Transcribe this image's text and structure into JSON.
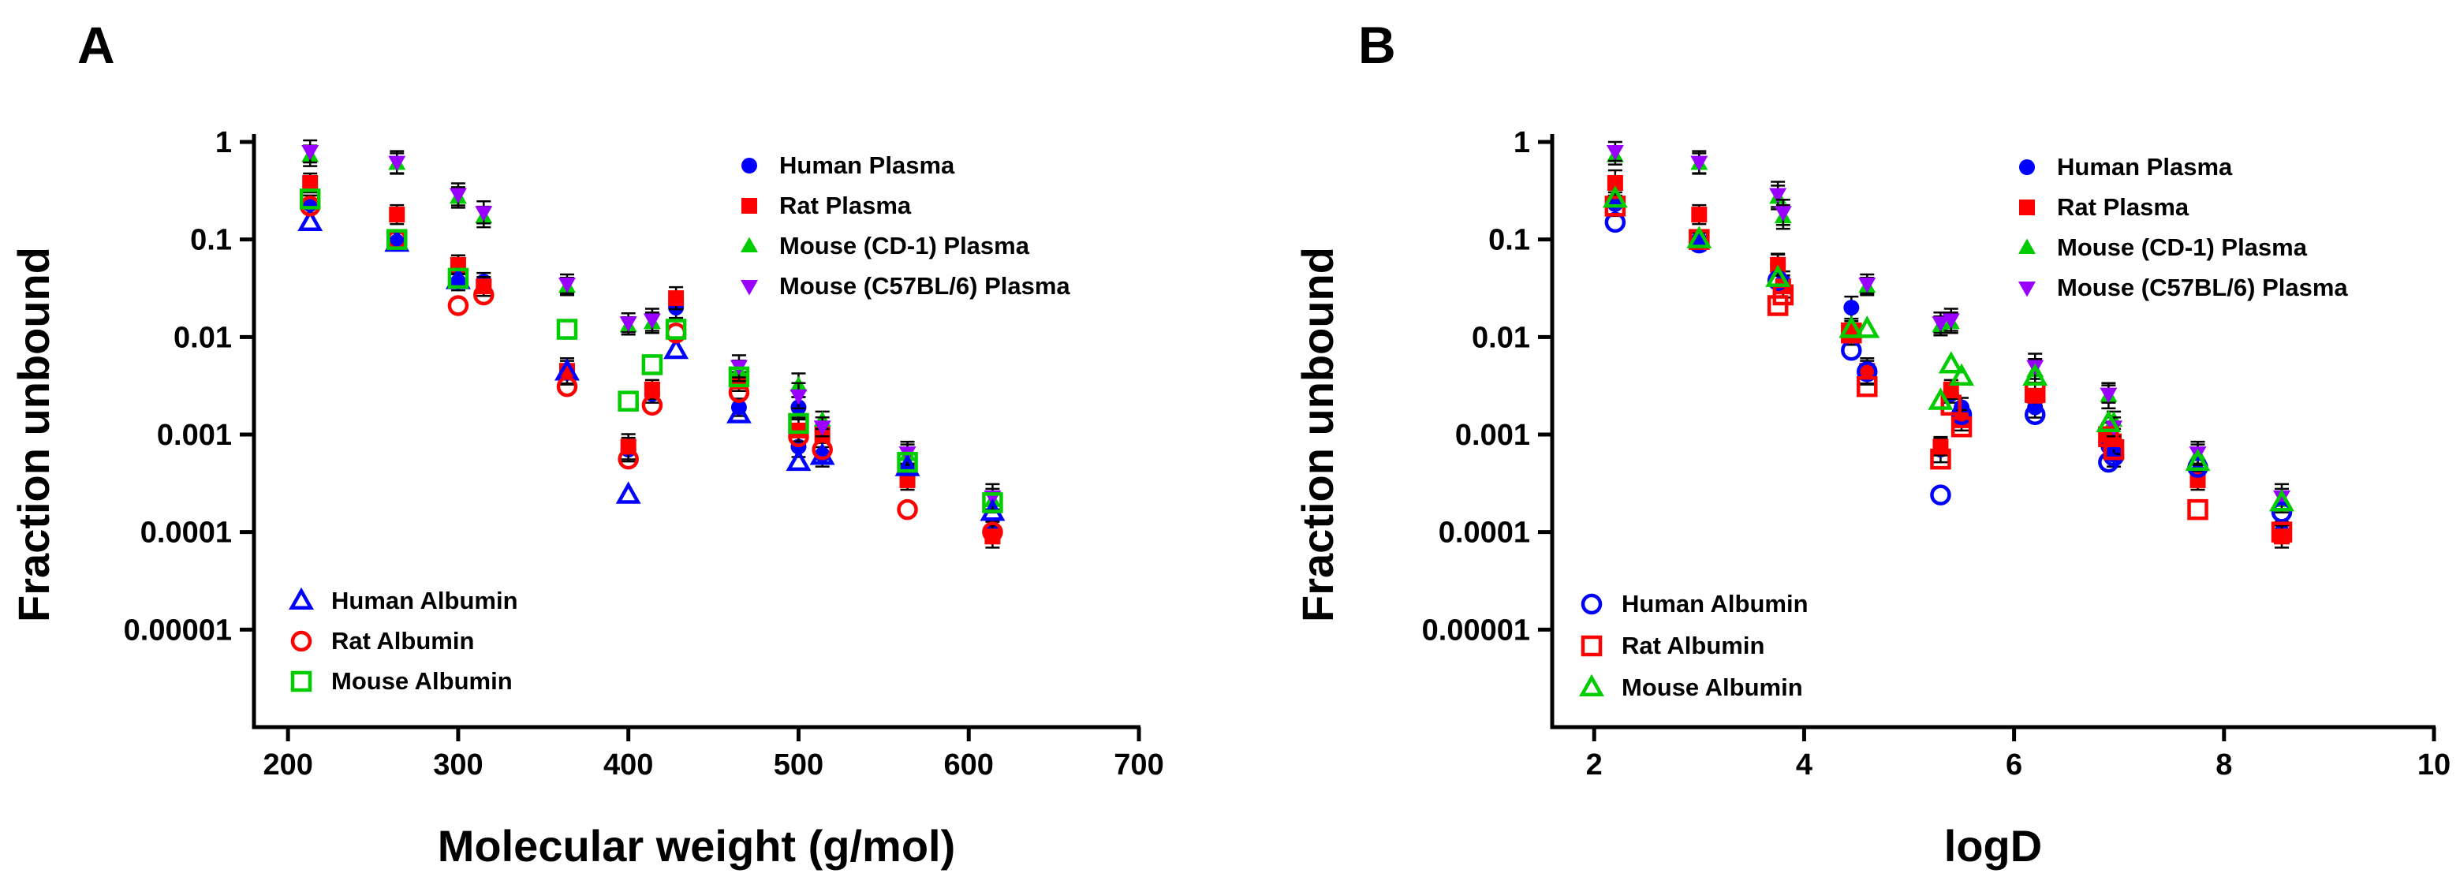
{
  "chart_data": [
    {
      "type": "scatter",
      "panel_label": "A",
      "xlabel": "Molecular weight (g/mol)",
      "ylabel": "Fraction unbound",
      "xlim": [
        180,
        700
      ],
      "xticks": [
        200,
        300,
        400,
        500,
        600,
        700
      ],
      "x_tick_labels": [
        "200",
        "300",
        "400",
        "500",
        "600",
        "700"
      ],
      "ylim": [
        1e-06,
        1
      ],
      "yscale": "log",
      "yticks": [
        1e-05,
        0.0001,
        0.001,
        0.01,
        0.1,
        1
      ],
      "y_tick_labels": [
        "0.00001",
        "0.0001",
        "0.001",
        "0.01",
        "0.1",
        "1"
      ],
      "grid": false,
      "legend_plasma_position": "top-right",
      "legend_albumin_position": "bottom-left",
      "series": [
        {
          "name": "Human Plasma",
          "marker": "circle",
          "filled": true,
          "color": "#0000ff",
          "legend": "plasma",
          "points": [
            [
              213,
              0.23
            ],
            [
              264,
              0.095
            ],
            [
              300,
              0.037
            ],
            [
              315,
              0.037
            ],
            [
              364,
              0.0043
            ],
            [
              400,
              0.0007
            ],
            [
              414,
              0.0026
            ],
            [
              428,
              0.02
            ],
            [
              465,
              0.0019
            ],
            [
              500,
              0.0019
            ],
            [
              500,
              0.00075
            ],
            [
              514,
              0.00062
            ],
            [
              564,
              0.00041
            ],
            [
              614,
              0.0001
            ]
          ]
        },
        {
          "name": "Rat Plasma",
          "marker": "square",
          "filled": true,
          "color": "#ff0000",
          "legend": "plasma",
          "points": [
            [
              213,
              0.38
            ],
            [
              264,
              0.18
            ],
            [
              300,
              0.055
            ],
            [
              315,
              0.033
            ],
            [
              364,
              0.0045
            ],
            [
              400,
              0.00075
            ],
            [
              414,
              0.0029
            ],
            [
              428,
              0.025
            ],
            [
              465,
              0.0035
            ],
            [
              500,
              0.0011
            ],
            [
              514,
              0.001
            ],
            [
              564,
              0.00034
            ],
            [
              614,
              9e-05
            ]
          ]
        },
        {
          "name": "Mouse (CD-1) Plasma",
          "marker": "triangle-up",
          "filled": true,
          "color": "#00cc00",
          "legend": "plasma",
          "points": [
            [
              213,
              0.72
            ],
            [
              264,
              0.6
            ],
            [
              300,
              0.27
            ],
            [
              315,
              0.17
            ],
            [
              364,
              0.033
            ],
            [
              400,
              0.013
            ],
            [
              414,
              0.014
            ],
            [
              465,
              0.0045
            ],
            [
              500,
              0.0032
            ],
            [
              514,
              0.0014
            ],
            [
              564,
              0.00062
            ],
            [
              614,
              0.00021
            ]
          ]
        },
        {
          "name": "Mouse (C57BL/6) Plasma",
          "marker": "triangle-down",
          "filled": true,
          "color": "#9900ff",
          "legend": "plasma",
          "points": [
            [
              213,
              0.8
            ],
            [
              264,
              0.62
            ],
            [
              300,
              0.29
            ],
            [
              315,
              0.19
            ],
            [
              364,
              0.035
            ],
            [
              400,
              0.014
            ],
            [
              414,
              0.015
            ],
            [
              465,
              0.005
            ],
            [
              500,
              0.0025
            ],
            [
              514,
              0.0012
            ],
            [
              564,
              0.00065
            ],
            [
              614,
              0.00023
            ]
          ]
        },
        {
          "name": "Human Albumin",
          "marker": "triangle-up",
          "filled": false,
          "color": "#0000ff",
          "legend": "albumin",
          "points": [
            [
              213,
              0.15
            ],
            [
              264,
              0.092
            ],
            [
              300,
              0.038
            ],
            [
              364,
              0.0044
            ],
            [
              400,
              0.00024
            ],
            [
              428,
              0.0073
            ],
            [
              465,
              0.0016
            ],
            [
              500,
              0.00052
            ],
            [
              514,
              0.0006
            ],
            [
              564,
              0.00046
            ],
            [
              614,
              0.00016
            ]
          ]
        },
        {
          "name": "Rat Albumin",
          "marker": "circle",
          "filled": false,
          "color": "#ff0000",
          "legend": "albumin",
          "points": [
            [
              213,
              0.22
            ],
            [
              264,
              0.1
            ],
            [
              300,
              0.021
            ],
            [
              315,
              0.027
            ],
            [
              364,
              0.0031
            ],
            [
              400,
              0.00056
            ],
            [
              414,
              0.002
            ],
            [
              428,
              0.011
            ],
            [
              465,
              0.0027
            ],
            [
              500,
              0.00095
            ],
            [
              514,
              0.0007
            ],
            [
              564,
              0.00017
            ],
            [
              614,
              0.0001
            ]
          ]
        },
        {
          "name": "Mouse Albumin",
          "marker": "square",
          "filled": false,
          "color": "#00cc00",
          "legend": "albumin",
          "points": [
            [
              213,
              0.26
            ],
            [
              264,
              0.1
            ],
            [
              300,
              0.04
            ],
            [
              364,
              0.012
            ],
            [
              400,
              0.0022
            ],
            [
              414,
              0.0052
            ],
            [
              428,
              0.012
            ],
            [
              465,
              0.0039
            ],
            [
              500,
              0.0013
            ],
            [
              564,
              0.00052
            ],
            [
              614,
              0.0002
            ]
          ]
        }
      ]
    },
    {
      "type": "scatter",
      "panel_label": "B",
      "xlabel": "logD",
      "ylabel": "Fraction unbound",
      "xlim": [
        1.6,
        10
      ],
      "xticks": [
        2,
        4,
        6,
        8,
        10
      ],
      "x_tick_labels": [
        "2",
        "4",
        "6",
        "8",
        "10"
      ],
      "ylim": [
        1e-06,
        1
      ],
      "yscale": "log",
      "yticks": [
        1e-05,
        0.0001,
        0.001,
        0.01,
        0.1,
        1
      ],
      "y_tick_labels": [
        "0.00001",
        "0.0001",
        "0.001",
        "0.01",
        "0.1",
        "1"
      ],
      "grid": false,
      "legend_plasma_position": "top-right",
      "legend_albumin_position": "bottom-left",
      "series": [
        {
          "name": "Human Plasma",
          "marker": "circle",
          "filled": true,
          "color": "#0000ff",
          "legend": "plasma",
          "points": [
            [
              2.2,
              0.23
            ],
            [
              3.0,
              0.095
            ],
            [
              3.75,
              0.055
            ],
            [
              3.8,
              0.037
            ],
            [
              4.45,
              0.02
            ],
            [
              4.6,
              0.0043
            ],
            [
              5.3,
              0.0007
            ],
            [
              5.4,
              0.0026
            ],
            [
              5.5,
              0.0019
            ],
            [
              6.2,
              0.0019
            ],
            [
              6.9,
              0.00075
            ],
            [
              6.95,
              0.00062
            ],
            [
              7.75,
              0.00041
            ],
            [
              8.55,
              0.0001
            ]
          ]
        },
        {
          "name": "Rat Plasma",
          "marker": "square",
          "filled": true,
          "color": "#ff0000",
          "legend": "plasma",
          "points": [
            [
              2.2,
              0.38
            ],
            [
              3.0,
              0.18
            ],
            [
              3.75,
              0.055
            ],
            [
              3.8,
              0.033
            ],
            [
              4.45,
              0.011
            ],
            [
              4.6,
              0.0045
            ],
            [
              5.3,
              0.00075
            ],
            [
              5.4,
              0.0029
            ],
            [
              5.5,
              0.0014
            ],
            [
              6.2,
              0.0025
            ],
            [
              6.9,
              0.001
            ],
            [
              6.95,
              0.00085
            ],
            [
              7.75,
              0.00034
            ],
            [
              8.55,
              9e-05
            ]
          ]
        },
        {
          "name": "Mouse (CD-1) Plasma",
          "marker": "triangle-up",
          "filled": true,
          "color": "#00cc00",
          "legend": "plasma",
          "points": [
            [
              2.2,
              0.72
            ],
            [
              3.0,
              0.6
            ],
            [
              3.75,
              0.27
            ],
            [
              3.8,
              0.17
            ],
            [
              4.6,
              0.033
            ],
            [
              5.3,
              0.013
            ],
            [
              5.4,
              0.014
            ],
            [
              6.2,
              0.0045
            ],
            [
              6.9,
              0.0025
            ],
            [
              6.95,
              0.0014
            ],
            [
              7.75,
              0.00062
            ],
            [
              8.55,
              0.00021
            ]
          ]
        },
        {
          "name": "Mouse (C57BL/6) Plasma",
          "marker": "triangle-down",
          "filled": true,
          "color": "#9900ff",
          "legend": "plasma",
          "points": [
            [
              2.2,
              0.8
            ],
            [
              3.0,
              0.62
            ],
            [
              3.75,
              0.29
            ],
            [
              3.8,
              0.19
            ],
            [
              4.6,
              0.035
            ],
            [
              5.3,
              0.014
            ],
            [
              5.4,
              0.015
            ],
            [
              6.2,
              0.005
            ],
            [
              6.9,
              0.0026
            ],
            [
              6.95,
              0.0012
            ],
            [
              7.75,
              0.00065
            ],
            [
              8.55,
              0.00023
            ]
          ]
        },
        {
          "name": "Human Albumin",
          "marker": "circle",
          "filled": false,
          "color": "#0000ff",
          "legend": "albumin",
          "points": [
            [
              2.2,
              0.15
            ],
            [
              3.0,
              0.092
            ],
            [
              3.75,
              0.038
            ],
            [
              4.45,
              0.0073
            ],
            [
              4.6,
              0.0044
            ],
            [
              5.3,
              0.00024
            ],
            [
              5.5,
              0.0016
            ],
            [
              6.2,
              0.0016
            ],
            [
              6.9,
              0.00052
            ],
            [
              6.95,
              0.0006
            ],
            [
              7.75,
              0.00046
            ],
            [
              8.55,
              0.00016
            ]
          ]
        },
        {
          "name": "Rat Albumin",
          "marker": "square",
          "filled": false,
          "color": "#ff0000",
          "legend": "albumin",
          "points": [
            [
              2.2,
              0.22
            ],
            [
              3.0,
              0.1
            ],
            [
              3.75,
              0.021
            ],
            [
              3.8,
              0.027
            ],
            [
              4.45,
              0.011
            ],
            [
              4.6,
              0.0031
            ],
            [
              5.3,
              0.00056
            ],
            [
              5.4,
              0.002
            ],
            [
              5.5,
              0.0012
            ],
            [
              6.2,
              0.0027
            ],
            [
              6.9,
              0.00095
            ],
            [
              6.95,
              0.0007
            ],
            [
              7.75,
              0.00017
            ],
            [
              8.55,
              0.0001
            ]
          ]
        },
        {
          "name": "Mouse Albumin",
          "marker": "triangle-up",
          "filled": false,
          "color": "#00cc00",
          "legend": "albumin",
          "points": [
            [
              2.2,
              0.26
            ],
            [
              3.0,
              0.1
            ],
            [
              3.75,
              0.04
            ],
            [
              4.45,
              0.012
            ],
            [
              4.6,
              0.012
            ],
            [
              5.3,
              0.0022
            ],
            [
              5.4,
              0.0052
            ],
            [
              5.5,
              0.0039
            ],
            [
              6.2,
              0.0039
            ],
            [
              6.9,
              0.0013
            ],
            [
              7.75,
              0.00052
            ],
            [
              8.55,
              0.0002
            ]
          ]
        }
      ]
    }
  ]
}
